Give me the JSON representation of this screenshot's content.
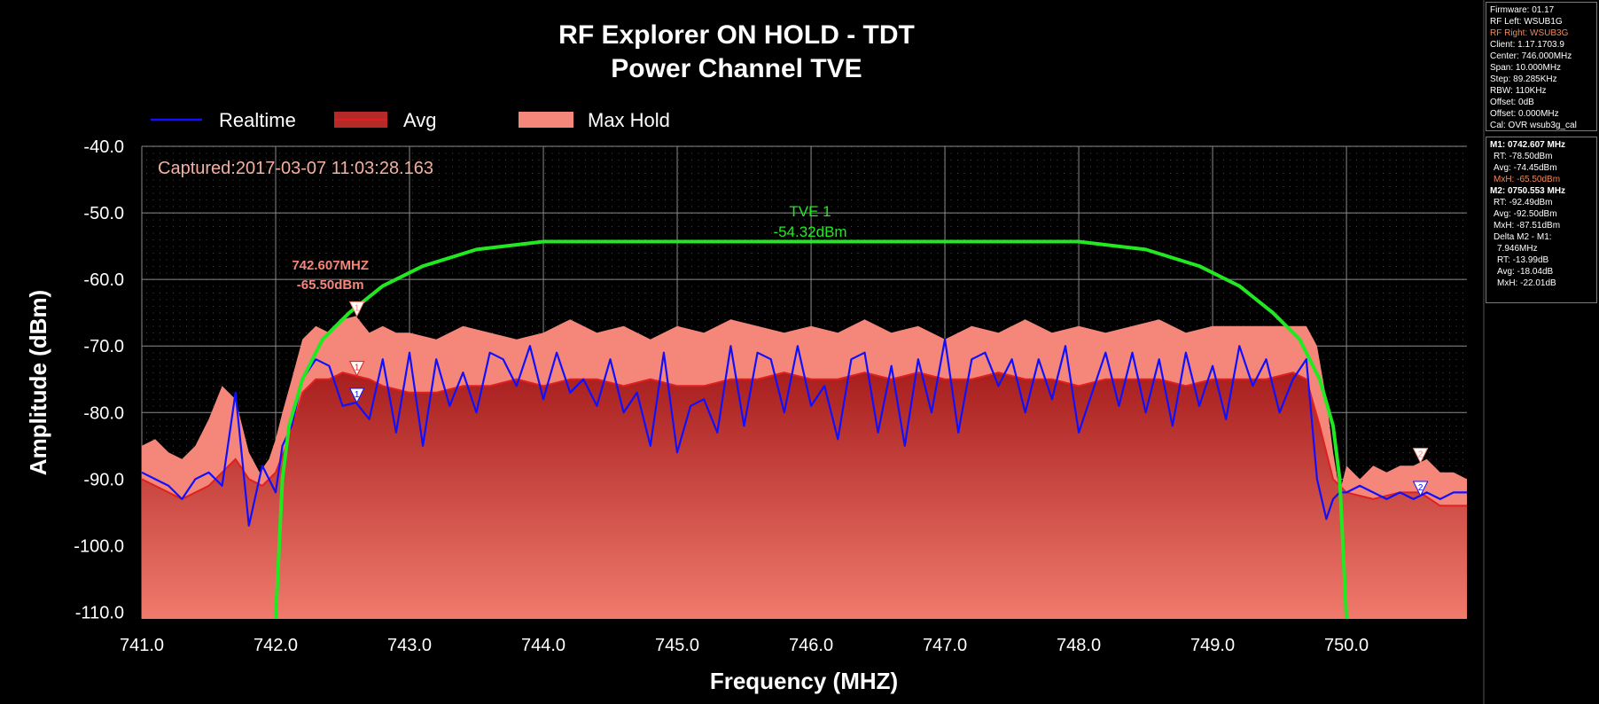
{
  "chart_data": {
    "type": "area",
    "title": "RF Explorer ON HOLD - TDT",
    "subtitle": "Power Channel TVE",
    "xlabel": "Frequency (MHZ)",
    "ylabel": "Amplitude (dBm)",
    "xlim": [
      741.0,
      750.9
    ],
    "ylim": [
      -111.0,
      -40.0
    ],
    "x_ticks": [
      "741.0",
      "742.0",
      "743.0",
      "744.0",
      "745.0",
      "746.0",
      "747.0",
      "748.0",
      "749.0",
      "750.0"
    ],
    "y_ticks": [
      "-40.0",
      "-50.0",
      "-60.0",
      "-70.0",
      "-80.0",
      "-90.0",
      "-100.0",
      "-110.0"
    ],
    "grid": true,
    "legend_position": "top-left",
    "captured": "Captured:2017-03-07 11:03:28.163",
    "series": [
      {
        "name": "Max Hold",
        "color": "#f5877a",
        "x": [
          741.0,
          741.1,
          741.2,
          741.3,
          741.4,
          741.5,
          741.6,
          741.7,
          741.8,
          741.88,
          741.95,
          742.0,
          742.05,
          742.12,
          742.2,
          742.3,
          742.4,
          742.5,
          742.6,
          742.7,
          742.8,
          742.9,
          743.0,
          743.2,
          743.4,
          743.6,
          743.8,
          744.0,
          744.2,
          744.4,
          744.6,
          744.8,
          745.0,
          745.2,
          745.4,
          745.6,
          745.8,
          746.0,
          746.2,
          746.4,
          746.6,
          746.8,
          747.0,
          747.2,
          747.4,
          747.6,
          747.8,
          748.0,
          748.2,
          748.4,
          748.6,
          748.8,
          749.0,
          749.2,
          749.4,
          749.6,
          749.7,
          749.78,
          749.85,
          749.9,
          749.95,
          750.0,
          750.1,
          750.2,
          750.3,
          750.4,
          750.5,
          750.6,
          750.7,
          750.8,
          750.9
        ],
        "y": [
          -85,
          -84,
          -86,
          -87,
          -85,
          -81,
          -76,
          -78,
          -86,
          -89,
          -87,
          -84,
          -80,
          -75,
          -69,
          -67,
          -68,
          -66,
          -65.5,
          -68,
          -67,
          -68,
          -68,
          -69,
          -67,
          -68,
          -69,
          -68,
          -66,
          -68,
          -67,
          -69,
          -67,
          -68,
          -66,
          -67,
          -68,
          -67,
          -68,
          -66,
          -68,
          -67,
          -69,
          -67,
          -68,
          -66,
          -68,
          -67,
          -68,
          -67,
          -66,
          -68,
          -67,
          -67,
          -67,
          -67,
          -67,
          -70,
          -78,
          -86,
          -92,
          -88,
          -90,
          -88,
          -89,
          -88,
          -88,
          -87,
          -89,
          -89,
          -90
        ]
      },
      {
        "name": "Avg",
        "color": "#e02020",
        "x": [
          741.0,
          741.1,
          741.2,
          741.3,
          741.4,
          741.5,
          741.6,
          741.7,
          741.8,
          741.9,
          742.0,
          742.1,
          742.2,
          742.3,
          742.4,
          742.5,
          742.6,
          742.7,
          742.8,
          743.0,
          743.2,
          743.4,
          743.6,
          743.8,
          744.0,
          744.2,
          744.4,
          744.6,
          744.8,
          745.0,
          745.2,
          745.4,
          745.6,
          745.8,
          746.0,
          746.2,
          746.4,
          746.6,
          746.8,
          747.0,
          747.2,
          747.4,
          747.6,
          747.8,
          748.0,
          748.2,
          748.4,
          748.6,
          748.8,
          749.0,
          749.2,
          749.4,
          749.6,
          749.7,
          749.8,
          749.9,
          750.0,
          750.2,
          750.4,
          750.55,
          750.7,
          750.9
        ],
        "y": [
          -90,
          -91,
          -92,
          -93,
          -92,
          -91,
          -89,
          -87,
          -90,
          -91,
          -89,
          -84,
          -77,
          -75,
          -75,
          -74,
          -74.5,
          -75,
          -76,
          -77,
          -77,
          -76,
          -76,
          -75,
          -76,
          -75,
          -75,
          -76,
          -75,
          -76,
          -76,
          -75,
          -75,
          -74,
          -75,
          -75,
          -74,
          -75,
          -74,
          -75,
          -75,
          -74,
          -75,
          -75,
          -76,
          -75,
          -75,
          -75,
          -76,
          -75,
          -75,
          -75,
          -74,
          -75,
          -82,
          -90,
          -92,
          -93,
          -92,
          -92,
          -94,
          -94
        ]
      },
      {
        "name": "Realtime",
        "color": "#1010ff",
        "x": [
          741.0,
          741.1,
          741.2,
          741.3,
          741.4,
          741.5,
          741.6,
          741.7,
          741.8,
          741.9,
          741.95,
          742.0,
          742.05,
          742.12,
          742.2,
          742.3,
          742.4,
          742.5,
          742.6,
          742.7,
          742.8,
          742.9,
          743.0,
          743.1,
          743.2,
          743.3,
          743.4,
          743.5,
          743.6,
          743.7,
          743.8,
          743.9,
          744.0,
          744.1,
          744.2,
          744.3,
          744.4,
          744.5,
          744.6,
          744.7,
          744.8,
          744.9,
          745.0,
          745.1,
          745.2,
          745.3,
          745.4,
          745.5,
          745.6,
          745.7,
          745.8,
          745.9,
          746.0,
          746.1,
          746.2,
          746.3,
          746.4,
          746.5,
          746.6,
          746.7,
          746.8,
          746.9,
          747.0,
          747.1,
          747.2,
          747.3,
          747.4,
          747.5,
          747.6,
          747.7,
          747.8,
          747.9,
          748.0,
          748.1,
          748.2,
          748.3,
          748.4,
          748.5,
          748.6,
          748.7,
          748.8,
          748.9,
          749.0,
          749.1,
          749.2,
          749.3,
          749.4,
          749.5,
          749.6,
          749.7,
          749.78,
          749.85,
          749.9,
          749.95,
          750.0,
          750.1,
          750.2,
          750.3,
          750.4,
          750.5,
          750.6,
          750.7,
          750.8,
          750.9
        ],
        "y": [
          -89,
          -90,
          -91,
          -93,
          -90,
          -89,
          -91,
          -77,
          -97,
          -88,
          -90,
          -92,
          -85,
          -82,
          -75,
          -72,
          -73,
          -79,
          -78.5,
          -81,
          -72,
          -83,
          -71,
          -85,
          -72,
          -79,
          -74,
          -80,
          -71,
          -72,
          -76,
          -70,
          -78,
          -71,
          -77,
          -75,
          -79,
          -72,
          -80,
          -77,
          -85,
          -71,
          -86,
          -79,
          -78,
          -83,
          -70,
          -82,
          -71,
          -72,
          -80,
          -70,
          -79,
          -76,
          -84,
          -72,
          -71,
          -83,
          -73,
          -85,
          -72,
          -80,
          -69,
          -83,
          -72,
          -71,
          -76,
          -72,
          -80,
          -72,
          -78,
          -70,
          -83,
          -77,
          -71,
          -79,
          -71,
          -80,
          -72,
          -82,
          -71,
          -79,
          -73,
          -81,
          -70,
          -76,
          -72,
          -80,
          -75,
          -72,
          -90,
          -96,
          -93,
          -92,
          -92,
          -91,
          -92,
          -93,
          -92,
          -93,
          -92,
          -93,
          -92,
          -92
        ]
      },
      {
        "name": "TVE 1",
        "color": "#22e822",
        "x": [
          742.0,
          742.05,
          742.1,
          742.2,
          742.35,
          742.55,
          742.8,
          743.1,
          743.5,
          744.0,
          748.0,
          748.5,
          748.9,
          749.2,
          749.45,
          749.65,
          749.8,
          749.9,
          749.95,
          750.0
        ],
        "y": [
          -111,
          -90,
          -82,
          -75,
          -69,
          -65,
          -61,
          -58,
          -55.5,
          -54.32,
          -54.32,
          -55.5,
          -58,
          -61,
          -65,
          -69,
          -75,
          -82,
          -90,
          -111
        ]
      }
    ],
    "channel_label": "TVE 1",
    "channel_power": "-54.32dBm",
    "markers": [
      {
        "id": "1",
        "freq": 742.607,
        "y_maxhold": -65.5,
        "y_avg": -74.45,
        "y_rt": -78.5,
        "label_freq": "742.607MHZ",
        "label_value": "-65.50dBm"
      },
      {
        "id": "2",
        "freq": 750.553,
        "y_maxhold": -87.51,
        "y_avg": -92.5,
        "y_rt": -92.49
      }
    ]
  },
  "panel": {
    "device": [
      {
        "text": "Firmware: 01.17",
        "style": ""
      },
      {
        "text": "RF Left: WSUB1G",
        "style": ""
      },
      {
        "text": "RF Right: WSUB3G",
        "style": "accent"
      },
      {
        "text": "Client: 1.17.1703.9",
        "style": ""
      },
      {
        "text": "Center: 746.000MHz",
        "style": ""
      },
      {
        "text": "Span: 10.000MHz",
        "style": ""
      },
      {
        "text": "Step: 89.285KHz",
        "style": ""
      },
      {
        "text": "RBW: 110KHz",
        "style": ""
      },
      {
        "text": "Offset: 0dB",
        "style": ""
      },
      {
        "text": "Offset: 0.000MHz",
        "style": ""
      },
      {
        "text": "Cal: OVR wsub3g_cal",
        "style": ""
      }
    ],
    "markers": [
      {
        "text": "M1: 0742.607 MHz",
        "style": "bold"
      },
      {
        "text": "RT: -78.50dBm",
        "style": "ind1"
      },
      {
        "text": "Avg: -74.45dBm",
        "style": "ind1"
      },
      {
        "text": "MxH: -65.50dBm",
        "style": "ind1 accent"
      },
      {
        "text": "M2: 0750.553 MHz",
        "style": "bold"
      },
      {
        "text": "RT: -92.49dBm",
        "style": "ind1"
      },
      {
        "text": "Avg: -92.50dBm",
        "style": "ind1"
      },
      {
        "text": "MxH: -87.51dBm",
        "style": "ind1"
      },
      {
        "text": "Delta M2 - M1:",
        "style": "ind1"
      },
      {
        "text": "7.946MHz",
        "style": "ind2"
      },
      {
        "text": "RT: -13.99dB",
        "style": "ind2"
      },
      {
        "text": "Avg: -18.04dB",
        "style": "ind2"
      },
      {
        "text": "MxH: -22.01dB",
        "style": "ind2"
      }
    ]
  }
}
